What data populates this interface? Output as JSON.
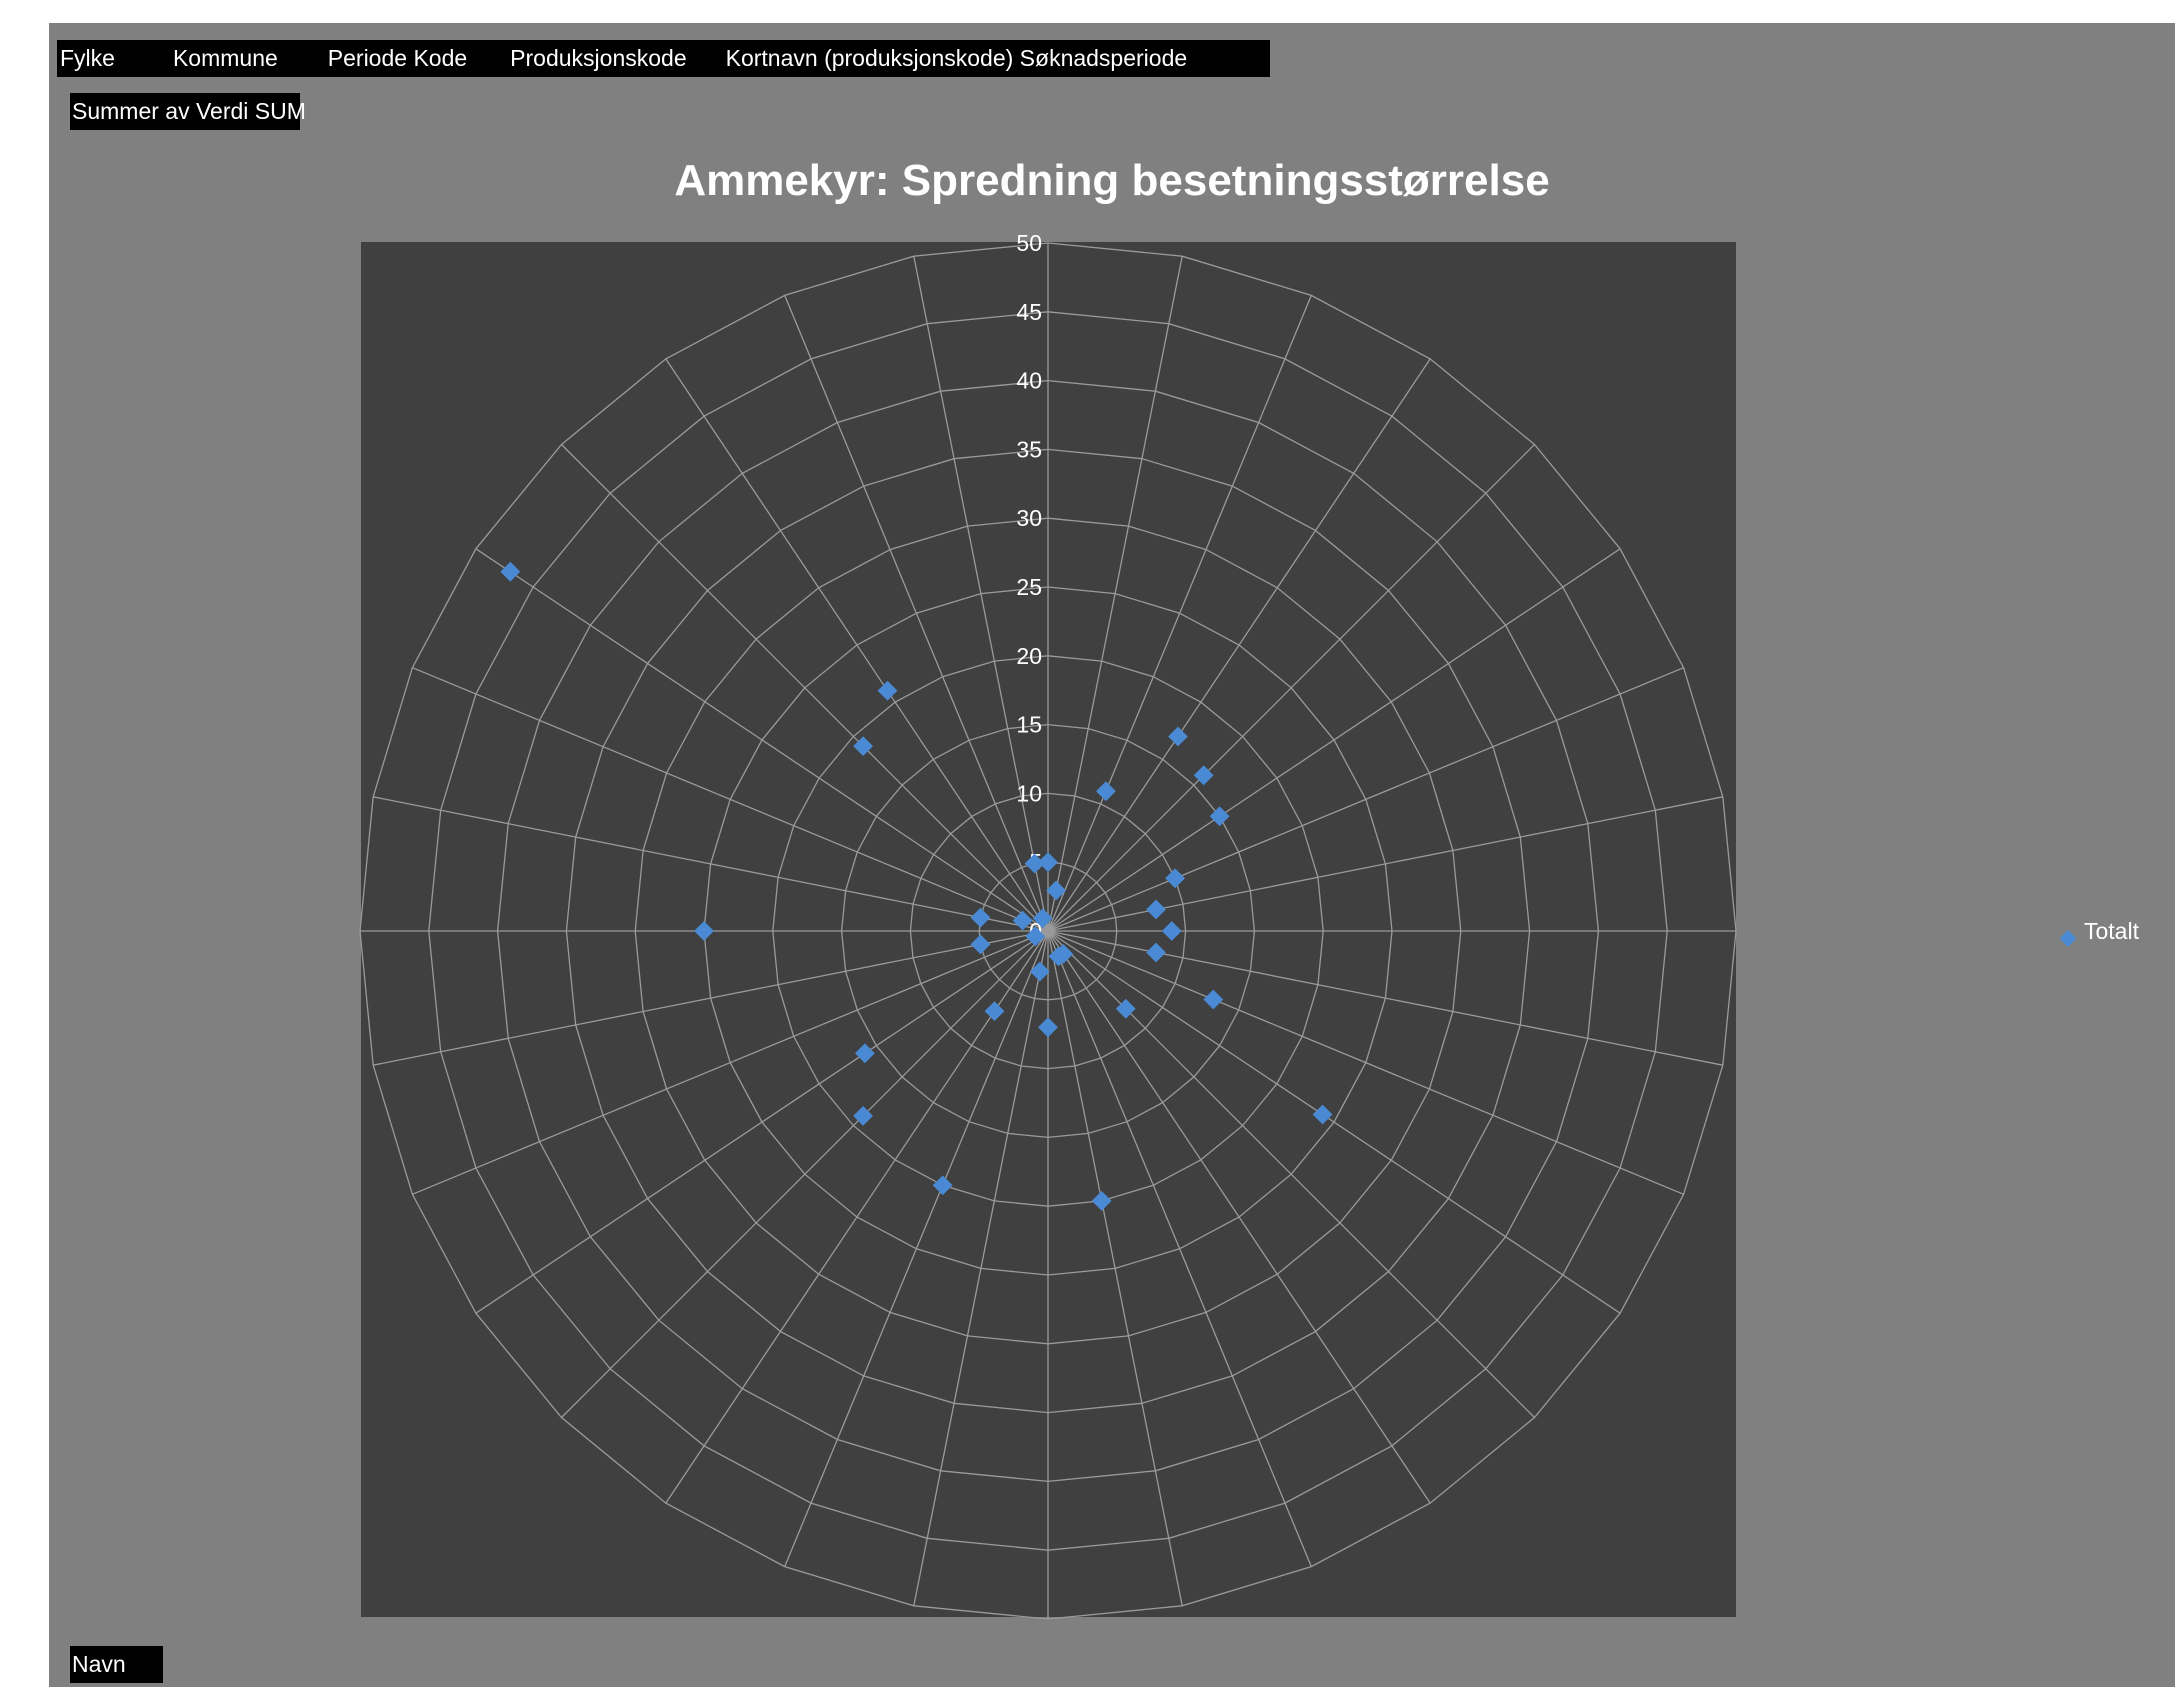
{
  "pivot": {
    "filter_fields": [
      "Fylke",
      "Kommune",
      "Periode Kode",
      "Produksjonskode",
      "Kortnavn (produksjonskode) Søknadsperiode"
    ],
    "values_field": "Summer av Verdi SUM",
    "axis_field": "Navn"
  },
  "colors": {
    "page_background": "#ffffff",
    "sheet_background": "#808080",
    "plot_background": "#404040",
    "gridline": "#9a9a9a",
    "text": "#ffffff",
    "marker": "#4a8ad4"
  },
  "chart_data": {
    "type": "radar",
    "title": "Ammekyr: Spredning besetningsstørrelse",
    "radial_axis": {
      "min": 0,
      "max": 50,
      "step": 5,
      "ticks": [
        "0",
        "5",
        "10",
        "15",
        "20",
        "25",
        "30",
        "35",
        "40",
        "45",
        "50"
      ]
    },
    "categories_count": 32,
    "grid": true,
    "legend": {
      "position": "right",
      "entries": [
        "Totalt"
      ]
    },
    "series": [
      {
        "name": "Totalt",
        "marker": "diamond",
        "values": [
          5,
          3,
          11,
          17,
          16,
          15,
          10,
          8,
          9,
          8,
          13,
          24,
          8,
          2,
          2,
          20,
          7,
          3,
          20,
          7,
          19,
          16,
          1,
          5,
          25,
          5,
          2,
          47,
          19,
          21,
          1,
          5
        ]
      }
    ]
  }
}
